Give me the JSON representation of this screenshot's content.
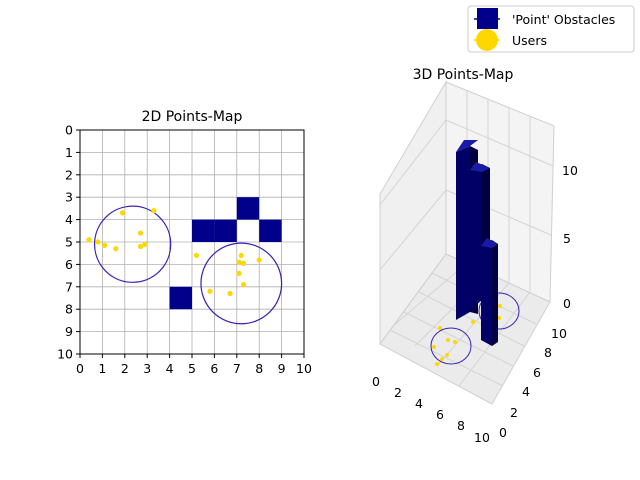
{
  "chart_data": [
    {
      "type": "scatter",
      "title": "2D Points-Map",
      "xlim": [
        0,
        10
      ],
      "ylim": [
        10,
        0
      ],
      "y_inverted": true,
      "grid": true,
      "xticks": [
        "0",
        "1",
        "2",
        "3",
        "4",
        "5",
        "6",
        "7",
        "8",
        "9",
        "10"
      ],
      "yticks": [
        "0",
        "1",
        "2",
        "3",
        "4",
        "5",
        "6",
        "7",
        "8",
        "9",
        "10"
      ],
      "obstacles": [
        [
          5,
          4
        ],
        [
          6,
          4
        ],
        [
          7,
          3
        ],
        [
          8,
          4
        ],
        [
          4,
          7
        ]
      ],
      "obstacle_color": "#00008b",
      "users": [
        [
          0.4,
          4.9
        ],
        [
          0.8,
          5.0
        ],
        [
          1.1,
          5.15
        ],
        [
          1.6,
          5.3
        ],
        [
          1.9,
          3.7
        ],
        [
          3.3,
          3.6
        ],
        [
          2.7,
          4.6
        ],
        [
          2.7,
          5.2
        ],
        [
          2.9,
          5.1
        ],
        [
          5.2,
          5.6
        ],
        [
          5.8,
          7.2
        ],
        [
          6.7,
          7.3
        ],
        [
          7.1,
          5.9
        ],
        [
          7.2,
          5.6
        ],
        [
          7.3,
          5.95
        ],
        [
          7.1,
          6.4
        ],
        [
          7.3,
          6.9
        ],
        [
          8.0,
          5.8
        ]
      ],
      "user_color": "#ffd700",
      "circles": [
        {
          "cx": 2.35,
          "cy": 5.1,
          "r": 1.7
        },
        {
          "cx": 7.2,
          "cy": 6.85,
          "r": 1.8
        }
      ],
      "circle_color": "#3a1fb5"
    },
    {
      "type": "bar3d",
      "title": "3D Points-Map",
      "xticks": [
        "0",
        "2",
        "4",
        "6",
        "8",
        "10"
      ],
      "yticks": [
        "0",
        "2",
        "4",
        "6",
        "8",
        "10"
      ],
      "zticks": [
        "0",
        "5",
        "10"
      ],
      "bar_color": "#00008b",
      "bars": [
        {
          "x": 5,
          "y": 4,
          "h": 12
        },
        {
          "x": 6,
          "y": 4,
          "h": 11
        },
        {
          "x": 7,
          "y": 3,
          "h": 10
        },
        {
          "x": 8,
          "y": 4,
          "h": 5
        },
        {
          "x": 4,
          "y": 7,
          "h": 2
        }
      ]
    }
  ],
  "legend": {
    "items": [
      {
        "label": "'Point' Obstacles",
        "color": "#00008b"
      },
      {
        "label": "Users",
        "color": "#ffd700"
      }
    ],
    "placement": "top-right"
  }
}
